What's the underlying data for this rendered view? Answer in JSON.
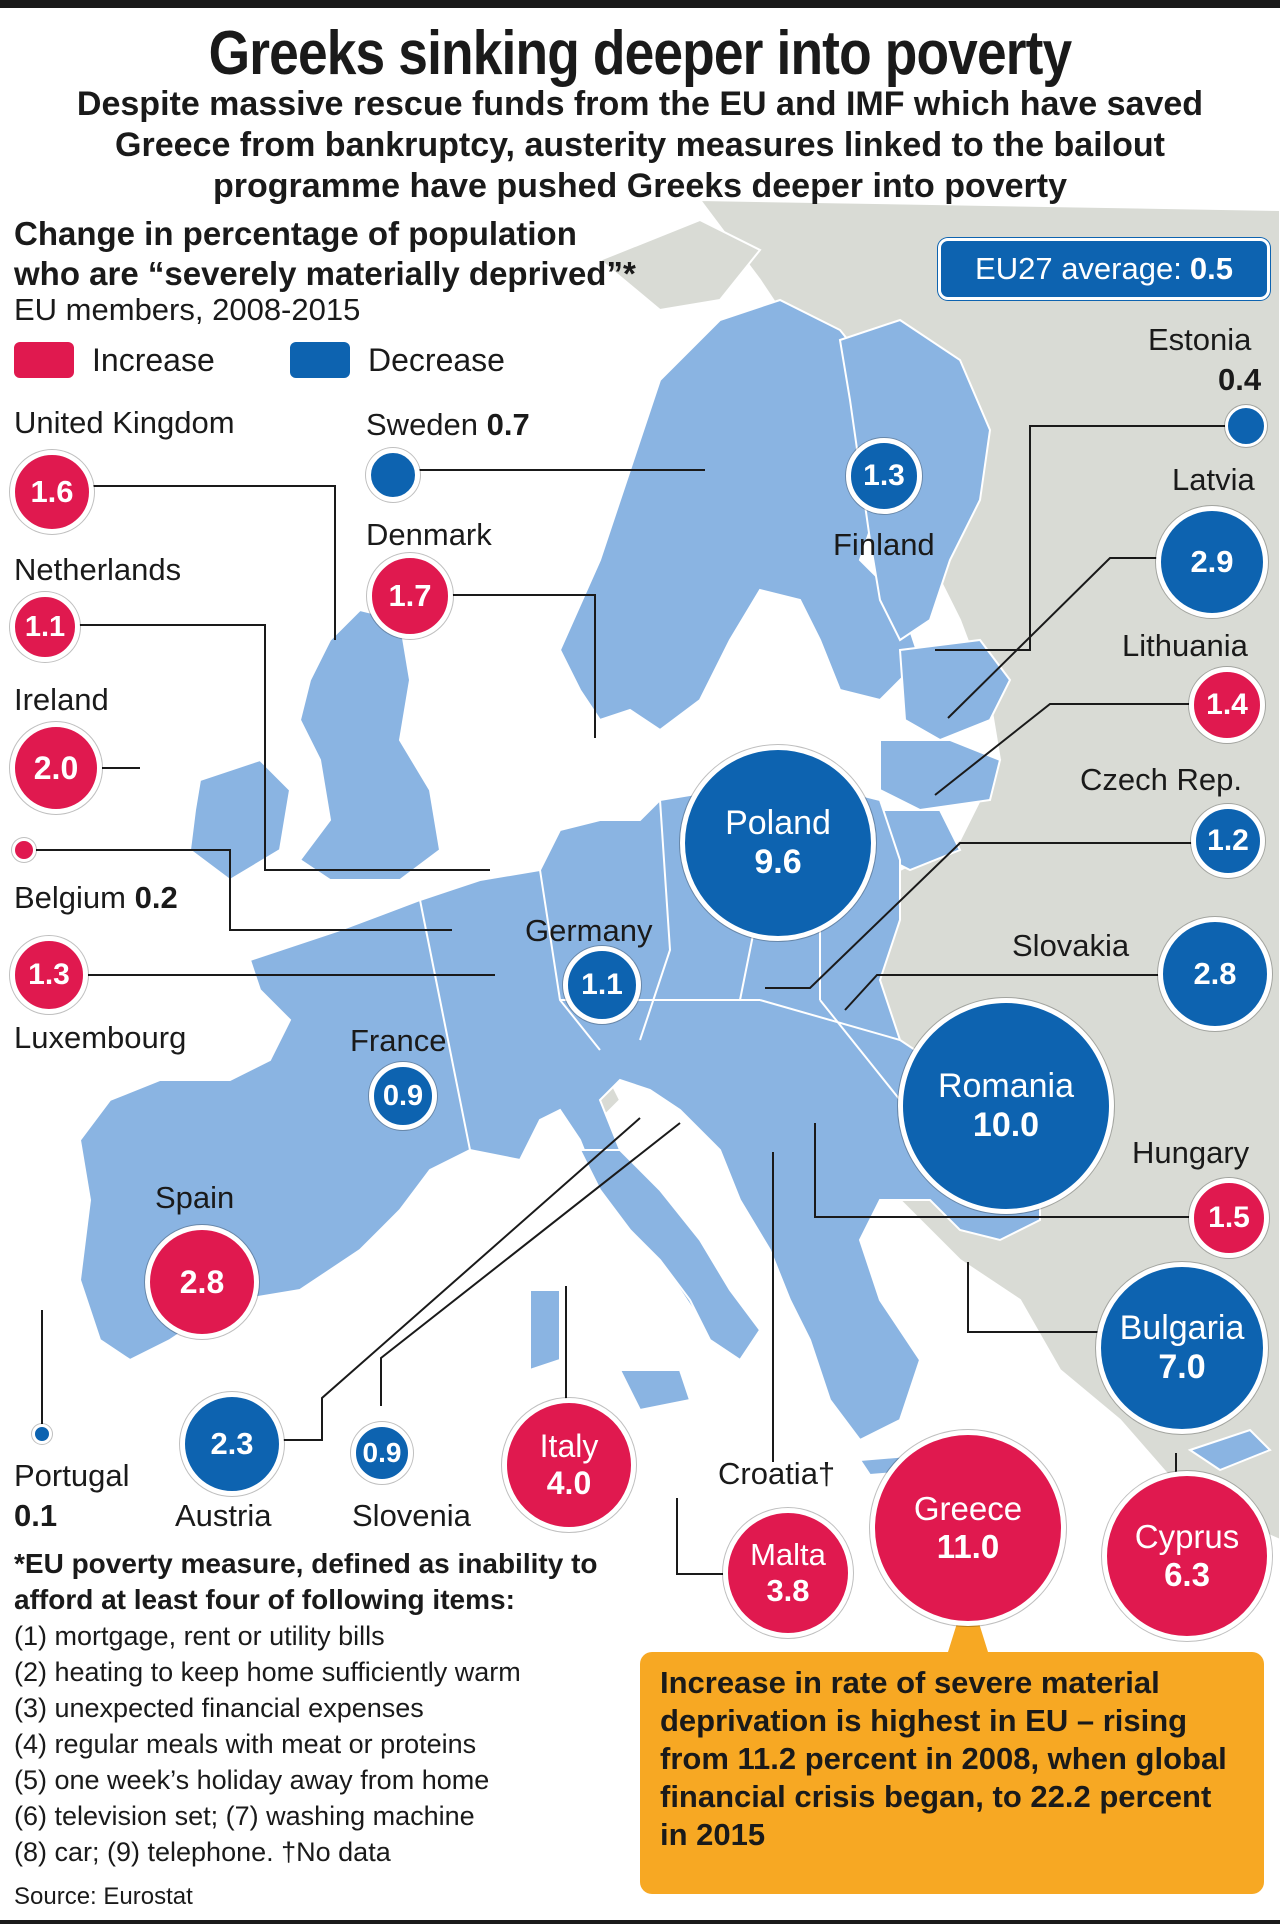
{
  "header": {
    "title": "Greeks sinking deeper into poverty",
    "subtitle": "Despite massive rescue funds from the EU and IMF which have saved Greece from bankruptcy, austerity measures linked to the bailout programme have pushed Greeks deeper into poverty"
  },
  "chart_title": {
    "line1": "Change in percentage of population",
    "line2": "who are “severely materially deprived”*",
    "sub": "EU members, 2008-2015"
  },
  "legend": {
    "increase_label": "Increase",
    "decrease_label": "Decrease",
    "increase_color": "#e0194f",
    "decrease_color": "#0d63b0"
  },
  "eu_average": {
    "label": "EU27 average:",
    "value": "0.5"
  },
  "countries": {
    "united_kingdom": {
      "name": "United Kingdom",
      "value": "1.6",
      "change": "increase"
    },
    "netherlands": {
      "name": "Netherlands",
      "value": "1.1",
      "change": "increase"
    },
    "ireland": {
      "name": "Ireland",
      "value": "2.0",
      "change": "increase"
    },
    "belgium": {
      "name": "Belgium",
      "value": "0.2",
      "change": "increase"
    },
    "luxembourg": {
      "name": "Luxembourg",
      "value": "1.3",
      "change": "increase"
    },
    "sweden": {
      "name": "Sweden",
      "value": "0.7",
      "change": "decrease"
    },
    "denmark": {
      "name": "Denmark",
      "value": "1.7",
      "change": "increase"
    },
    "finland": {
      "name": "Finland",
      "value": "1.3",
      "change": "decrease"
    },
    "estonia": {
      "name": "Estonia",
      "value": "0.4",
      "change": "decrease"
    },
    "latvia": {
      "name": "Latvia",
      "value": "2.9",
      "change": "decrease"
    },
    "lithuania": {
      "name": "Lithuania",
      "value": "1.4",
      "change": "increase"
    },
    "czech_rep": {
      "name": "Czech Rep.",
      "value": "1.2",
      "change": "decrease"
    },
    "poland": {
      "name": "Poland",
      "value": "9.6",
      "change": "decrease"
    },
    "germany": {
      "name": "Germany",
      "value": "1.1",
      "change": "decrease"
    },
    "slovakia": {
      "name": "Slovakia",
      "value": "2.8",
      "change": "decrease"
    },
    "france": {
      "name": "France",
      "value": "0.9",
      "change": "decrease"
    },
    "romania": {
      "name": "Romania",
      "value": "10.0",
      "change": "decrease"
    },
    "spain": {
      "name": "Spain",
      "value": "2.8",
      "change": "increase"
    },
    "hungary": {
      "name": "Hungary",
      "value": "1.5",
      "change": "increase"
    },
    "bulgaria": {
      "name": "Bulgaria",
      "value": "7.0",
      "change": "decrease"
    },
    "portugal": {
      "name": "Portugal",
      "value": "0.1",
      "change": "decrease"
    },
    "austria": {
      "name": "Austria",
      "value": "2.3",
      "change": "decrease"
    },
    "slovenia": {
      "name": "Slovenia",
      "value": "0.9",
      "change": "decrease"
    },
    "italy": {
      "name": "Italy",
      "value": "4.0",
      "change": "increase"
    },
    "croatia": {
      "name": "Croatia†"
    },
    "malta": {
      "name": "Malta",
      "value": "3.8",
      "change": "increase"
    },
    "greece": {
      "name": "Greece",
      "value": "11.0",
      "change": "increase"
    },
    "cyprus": {
      "name": "Cyprus",
      "value": "6.3",
      "change": "increase"
    }
  },
  "footnote": {
    "heading": "*EU poverty measure, defined as inability to afford at least four of following items:",
    "items": [
      "(1) mortgage, rent or utility bills",
      "(2) heating to keep home sufficiently warm",
      "(3) unexpected financial expenses",
      "(4) regular meals with meat or proteins",
      "(5) one week’s holiday away from home",
      "(6) television set; (7) washing machine",
      "(8) car; (9) telephone. †No data"
    ]
  },
  "callout": "Increase in rate of severe material deprivation is highest in EU – rising from 11.2 percent in 2008, when global financial crisis began, to 22.2 percent in 2015",
  "source": "Source: Eurostat",
  "colors": {
    "land": "#8ab4e2",
    "non_eu_land": "#d9dbd5",
    "callout_bg": "#f7a823"
  }
}
